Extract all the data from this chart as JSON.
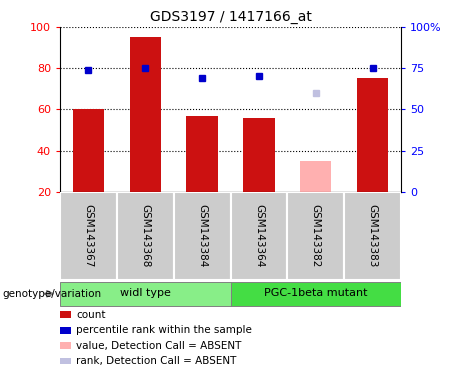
{
  "title": "GDS3197 / 1417166_at",
  "samples": [
    "GSM143367",
    "GSM143368",
    "GSM143384",
    "GSM143364",
    "GSM143382",
    "GSM143383"
  ],
  "count_values": [
    60,
    95,
    57,
    56,
    35,
    75
  ],
  "count_absent": [
    false,
    false,
    false,
    false,
    true,
    false
  ],
  "rank_values": [
    74,
    75,
    69,
    70,
    60,
    75
  ],
  "rank_absent": [
    false,
    false,
    false,
    false,
    true,
    false
  ],
  "ylim_left": [
    20,
    100
  ],
  "ylim_right": [
    0,
    100
  ],
  "yticks_left": [
    20,
    40,
    60,
    80,
    100
  ],
  "yticks_right": [
    0,
    25,
    50,
    75,
    100
  ],
  "ytick_labels_right": [
    "0",
    "25",
    "50",
    "75",
    "100%"
  ],
  "bar_color_present": "#cc1111",
  "bar_color_absent": "#ffb0b0",
  "rank_color_present": "#0000cc",
  "rank_color_absent": "#c0c0e0",
  "bar_width": 0.55,
  "group1_label": "widl type",
  "group2_label": "PGC-1beta mutant",
  "group1_indices": [
    0,
    1,
    2
  ],
  "group2_indices": [
    3,
    4,
    5
  ],
  "group1_color": "#88ee88",
  "group2_color": "#44dd44",
  "genotype_label": "genotype/variation",
  "legend_items": [
    {
      "label": "count",
      "color": "#cc1111"
    },
    {
      "label": "percentile rank within the sample",
      "color": "#0000cc"
    },
    {
      "label": "value, Detection Call = ABSENT",
      "color": "#ffb0b0"
    },
    {
      "label": "rank, Detection Call = ABSENT",
      "color": "#c0c0e0"
    }
  ],
  "background_color": "#ffffff",
  "xlabel_area_color": "#cccccc",
  "figsize": [
    4.61,
    3.84
  ],
  "dpi": 100
}
